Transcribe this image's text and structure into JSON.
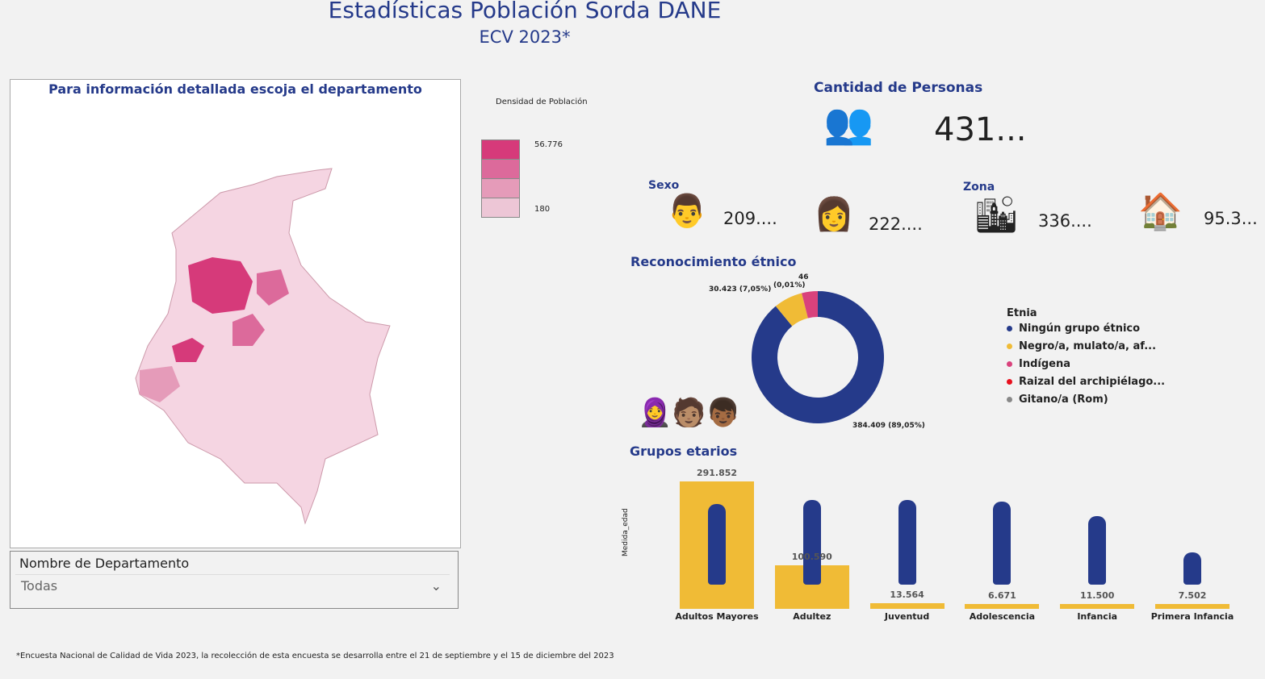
{
  "header": {
    "title": "Estadísticas Población Sorda DANE",
    "subtitle": "ECV 2023*"
  },
  "map": {
    "title": "Para información detallada escoja el departamento",
    "legend_title": "Densidad de Población",
    "legend_max": "56.776",
    "legend_min": "180",
    "colors": [
      "#d63a7a",
      "#dc6a9b",
      "#e59bb9",
      "#edc6d6"
    ]
  },
  "filter": {
    "label": "Nombre de Departamento",
    "value": "Todas"
  },
  "personas": {
    "title": "Cantidad de Personas",
    "value": "431..."
  },
  "sexo": {
    "title": "Sexo",
    "hombres": "209....",
    "mujeres": "222...."
  },
  "zona": {
    "title": "Zona",
    "urbana": "336....",
    "rural": "95.3..."
  },
  "etnico": {
    "title": "Reconocimiento étnico",
    "legend_title": "Etnia",
    "labels": {
      "ninguno": "384.409 (89,05%)",
      "negro": "30.423 (7,05%)",
      "raizal_top": "46",
      "raizal_bottom": "(0,01%)"
    },
    "items": [
      {
        "label": "Ningún grupo étnico",
        "color": "#253a8a",
        "value": 384409
      },
      {
        "label": "Negro/a, mulato/a, af...",
        "color": "#f0bb36",
        "value": 30423
      },
      {
        "label": "Indígena",
        "color": "#d9427c",
        "value": 16800
      },
      {
        "label": "Raizal del archipiélago...",
        "color": "#e8101e",
        "value": 46
      },
      {
        "label": "Gitano/a (Rom)",
        "color": "#888888",
        "value": 0
      }
    ]
  },
  "chart_data": {
    "type": "bar",
    "title": "Grupos etarios",
    "ylabel": "Medida_edad",
    "categories": [
      "Adultos Mayores",
      "Adultez",
      "Juventud",
      "Adolescencia",
      "Infancia",
      "Primera Infancia"
    ],
    "values": [
      291852,
      100590,
      13564,
      6671,
      11500,
      7502
    ],
    "labels": [
      "291.852",
      "100.590",
      "13.564",
      "6.671",
      "11.500",
      "7.502"
    ]
  },
  "footer": "*Encuesta Nacional de Calidad de Vida 2023, la recolección de esta encuesta se desarrolla entre el 21 de septiembre y el 15 de diciembre del 2023"
}
